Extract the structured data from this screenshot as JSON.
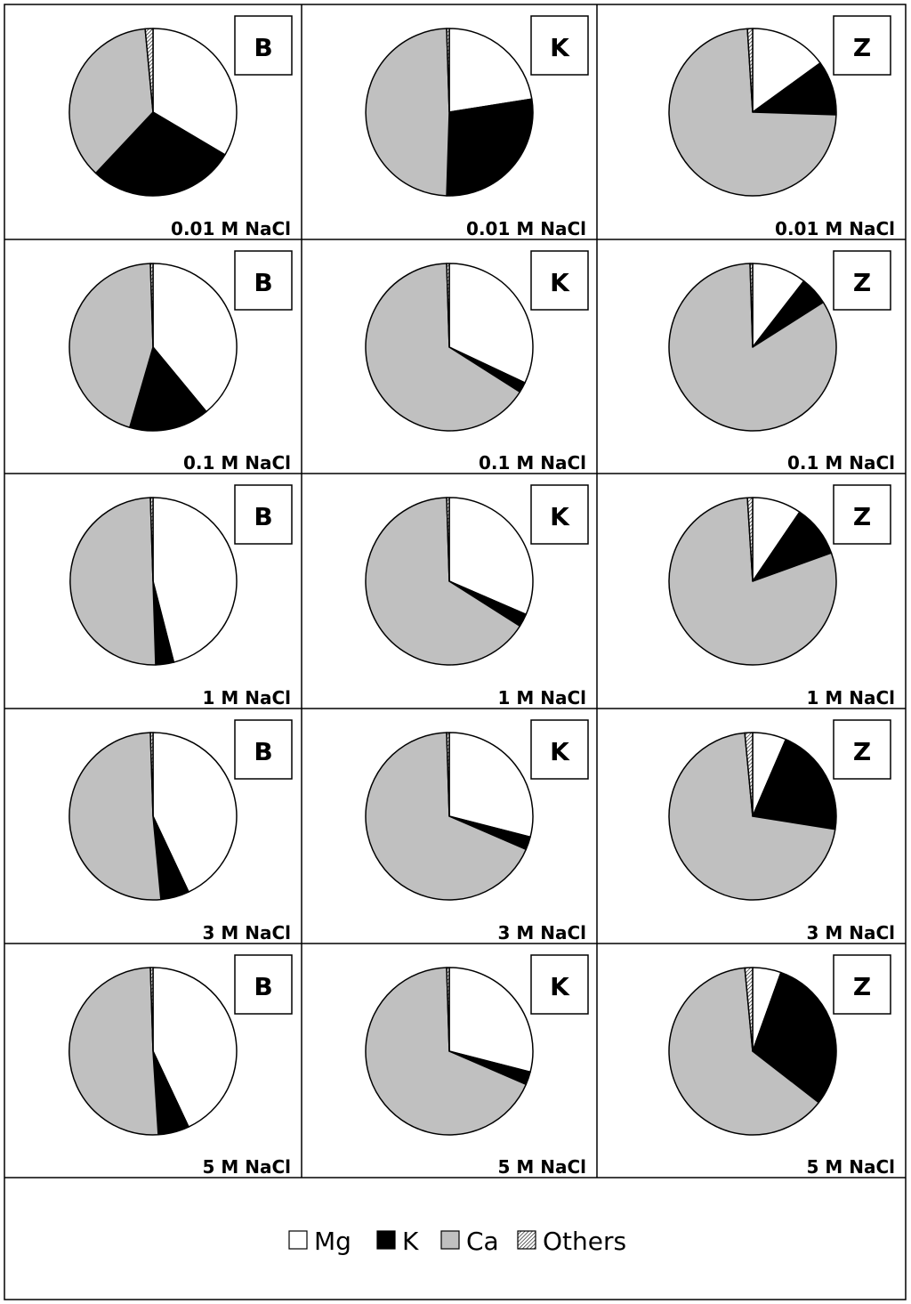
{
  "chart_data": [
    {
      "type": "pie",
      "panel_label": "B",
      "condition": "0.01 M NaCl",
      "categories": [
        "Mg",
        "K",
        "Ca",
        "Others"
      ],
      "values": [
        33.5,
        28.5,
        36.5,
        1.5
      ]
    },
    {
      "type": "pie",
      "panel_label": "K",
      "condition": "0.01 M NaCl",
      "categories": [
        "Mg",
        "K",
        "Ca",
        "Others"
      ],
      "values": [
        22.5,
        28.0,
        49.0,
        0.5
      ]
    },
    {
      "type": "pie",
      "panel_label": "Z",
      "condition": "0.01 M NaCl",
      "categories": [
        "Mg",
        "K",
        "Ca",
        "Others"
      ],
      "values": [
        15.0,
        10.5,
        73.5,
        1.0
      ]
    },
    {
      "type": "pie",
      "panel_label": "B",
      "condition": "0.1 M NaCl",
      "categories": [
        "Mg",
        "K",
        "Ca",
        "Others"
      ],
      "values": [
        39.0,
        15.5,
        45.0,
        0.5
      ]
    },
    {
      "type": "pie",
      "panel_label": "K",
      "condition": "0.1 M NaCl",
      "categories": [
        "Mg",
        "K",
        "Ca",
        "Others"
      ],
      "values": [
        32.0,
        2.0,
        65.5,
        0.5
      ]
    },
    {
      "type": "pie",
      "panel_label": "Z",
      "condition": "0.1 M NaCl",
      "categories": [
        "Mg",
        "K",
        "Ca",
        "Others"
      ],
      "values": [
        10.5,
        5.5,
        83.5,
        0.5
      ]
    },
    {
      "type": "pie",
      "panel_label": "B",
      "condition": "1 M NaCl",
      "categories": [
        "Mg",
        "K",
        "Ca",
        "Others"
      ],
      "values": [
        46.0,
        3.5,
        50.0,
        0.5
      ]
    },
    {
      "type": "pie",
      "panel_label": "K",
      "condition": "1 M NaCl",
      "categories": [
        "Mg",
        "K",
        "Ca",
        "Others"
      ],
      "values": [
        31.5,
        2.5,
        65.5,
        0.5
      ]
    },
    {
      "type": "pie",
      "panel_label": "Z",
      "condition": "1 M NaCl",
      "categories": [
        "Mg",
        "K",
        "Ca",
        "Others"
      ],
      "values": [
        9.5,
        10.0,
        79.5,
        1.0
      ]
    },
    {
      "type": "pie",
      "panel_label": "B",
      "condition": "3 M NaCl",
      "categories": [
        "Mg",
        "K",
        "Ca",
        "Others"
      ],
      "values": [
        43.0,
        5.5,
        51.0,
        0.5
      ]
    },
    {
      "type": "pie",
      "panel_label": "K",
      "condition": "3 M NaCl",
      "categories": [
        "Mg",
        "K",
        "Ca",
        "Others"
      ],
      "values": [
        29.0,
        2.5,
        68.0,
        0.5
      ]
    },
    {
      "type": "pie",
      "panel_label": "Z",
      "condition": "3 M NaCl",
      "categories": [
        "Mg",
        "K",
        "Ca",
        "Others"
      ],
      "values": [
        6.5,
        21.0,
        71.0,
        1.5
      ]
    },
    {
      "type": "pie",
      "panel_label": "B",
      "condition": "5 M NaCl",
      "categories": [
        "Mg",
        "K",
        "Ca",
        "Others"
      ],
      "values": [
        43.0,
        6.0,
        50.5,
        0.5
      ]
    },
    {
      "type": "pie",
      "panel_label": "K",
      "condition": "5 M NaCl",
      "categories": [
        "Mg",
        "K",
        "Ca",
        "Others"
      ],
      "values": [
        29.0,
        2.5,
        68.0,
        0.5
      ]
    },
    {
      "type": "pie",
      "panel_label": "Z",
      "condition": "5 M NaCl",
      "categories": [
        "Mg",
        "K",
        "Ca",
        "Others"
      ],
      "values": [
        5.5,
        30.0,
        63.0,
        1.5
      ]
    }
  ],
  "legend": {
    "placement": "bottom",
    "items": [
      {
        "label": "Mg",
        "color": "#ffffff"
      },
      {
        "label": "K",
        "color": "#000000"
      },
      {
        "label": "Ca",
        "color": "#c0c0c0"
      },
      {
        "label": "Others",
        "color": "hatched"
      }
    ]
  },
  "colors": {
    "Mg": "#ffffff",
    "K": "#000000",
    "Ca": "#c0c0c0",
    "Others": "hatched",
    "outline": "#000000"
  }
}
